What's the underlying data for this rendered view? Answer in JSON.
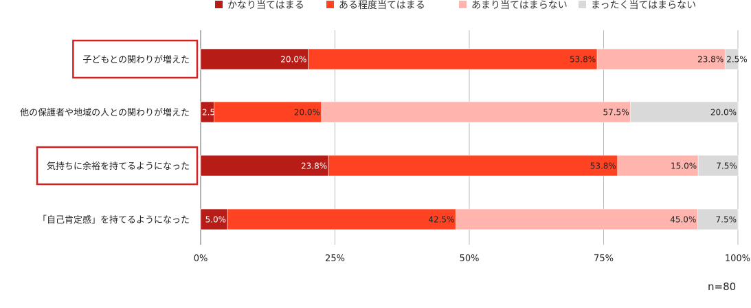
{
  "chart_data": {
    "type": "bar",
    "orientation": "horizontal",
    "stacked": true,
    "categories": [
      "子どもとの関わりが増えた",
      "他の保護者や地域の人との関わりが増えた",
      "気持ちに余裕を持てるようになった",
      "「自己肯定感」を持てるようになった"
    ],
    "highlighted_categories": [
      0,
      2
    ],
    "series": [
      {
        "name": "かなり当てはまる",
        "color": "#b71c17",
        "label_color": "#ffffff",
        "values": [
          20.0,
          2.5,
          23.8,
          5.0
        ],
        "labels": [
          "20.0%",
          "2.5%",
          "23.8%",
          "5.0%"
        ]
      },
      {
        "name": "ある程度当てはまる",
        "color": "#ff4322",
        "label_color": "#222222",
        "values": [
          53.8,
          20.0,
          53.8,
          42.5
        ],
        "labels": [
          "53.8%",
          "20.0%",
          "53.8%",
          "42.5%"
        ]
      },
      {
        "name": "あまり当てはまらない",
        "color": "#ffb4ad",
        "label_color": "#222222",
        "values": [
          23.8,
          57.5,
          15.0,
          45.0
        ],
        "labels": [
          "23.8%",
          "57.5%",
          "15.0%",
          "45.0%"
        ]
      },
      {
        "name": "まったく当てはまらない",
        "color": "#d9d9d9",
        "label_color": "#222222",
        "values": [
          2.5,
          20.0,
          7.5,
          7.5
        ],
        "labels": [
          "2.5%",
          "20.0%",
          "7.5%",
          "7.5%"
        ]
      }
    ],
    "x_ticks": [
      "0%",
      "25%",
      "50%",
      "75%",
      "100%"
    ],
    "xlim": [
      0,
      100
    ],
    "grid": true,
    "legend_position": "top",
    "highlight_color": "#d42020"
  },
  "note": "n=80"
}
